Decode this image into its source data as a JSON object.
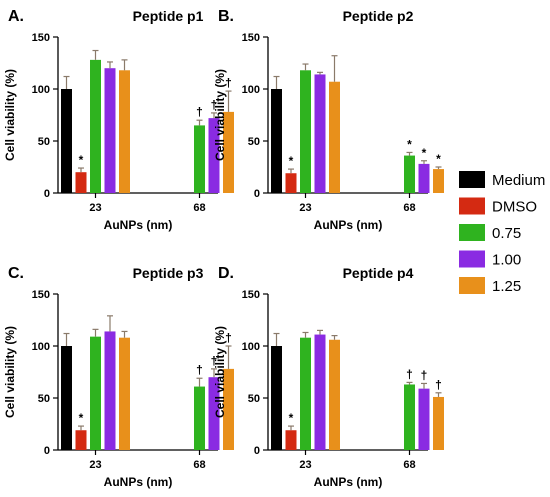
{
  "chart_data": [
    {
      "type": "bar",
      "panel_label": "A.",
      "title": "Peptide p1",
      "xlabel": "AuNPs (nm)",
      "ylabel": "Cell viability (%)",
      "ylim": [
        0,
        150
      ],
      "yticks": [
        0,
        50,
        100,
        150
      ],
      "categories": [
        "23",
        "68"
      ],
      "series": [
        {
          "name": "Medium",
          "values": [
            100,
            null
          ],
          "errors": [
            12,
            null
          ],
          "marks": [
            "",
            ""
          ]
        },
        {
          "name": "DMSO",
          "values": [
            20,
            null
          ],
          "errors": [
            4,
            null
          ],
          "marks": [
            "*",
            ""
          ]
        },
        {
          "name": "0.75",
          "values": [
            128,
            65
          ],
          "errors": [
            9,
            5
          ],
          "marks": [
            "",
            "†"
          ]
        },
        {
          "name": "1.00",
          "values": [
            120,
            72
          ],
          "errors": [
            6,
            5
          ],
          "marks": [
            "",
            "†"
          ]
        },
        {
          "name": "1.25",
          "values": [
            118,
            78
          ],
          "errors": [
            10,
            20
          ],
          "marks": [
            "",
            "†"
          ]
        }
      ]
    },
    {
      "type": "bar",
      "panel_label": "B.",
      "title": "Peptide p2",
      "xlabel": "AuNPs (nm)",
      "ylabel": "Cell viability (%)",
      "ylim": [
        0,
        150
      ],
      "yticks": [
        0,
        50,
        100,
        150
      ],
      "categories": [
        "23",
        "68"
      ],
      "series": [
        {
          "name": "Medium",
          "values": [
            100,
            null
          ],
          "errors": [
            12,
            null
          ],
          "marks": [
            "",
            ""
          ]
        },
        {
          "name": "DMSO",
          "values": [
            19,
            null
          ],
          "errors": [
            4,
            null
          ],
          "marks": [
            "*",
            ""
          ]
        },
        {
          "name": "0.75",
          "values": [
            118,
            36
          ],
          "errors": [
            6,
            3
          ],
          "marks": [
            "",
            "*"
          ]
        },
        {
          "name": "1.00",
          "values": [
            114,
            28
          ],
          "errors": [
            2,
            3
          ],
          "marks": [
            "",
            "*"
          ]
        },
        {
          "name": "1.25",
          "values": [
            107,
            23
          ],
          "errors": [
            25,
            2
          ],
          "marks": [
            "",
            "*"
          ]
        }
      ]
    },
    {
      "type": "bar",
      "panel_label": "C.",
      "title": "Peptide p3",
      "xlabel": "AuNPs (nm)",
      "ylabel": "Cell viability (%)",
      "ylim": [
        0,
        150
      ],
      "yticks": [
        0,
        50,
        100,
        150
      ],
      "categories": [
        "23",
        "68"
      ],
      "series": [
        {
          "name": "Medium",
          "values": [
            100,
            null
          ],
          "errors": [
            12,
            null
          ],
          "marks": [
            "",
            ""
          ]
        },
        {
          "name": "DMSO",
          "values": [
            19,
            null
          ],
          "errors": [
            4,
            null
          ],
          "marks": [
            "*",
            ""
          ]
        },
        {
          "name": "0.75",
          "values": [
            109,
            61
          ],
          "errors": [
            7,
            8
          ],
          "marks": [
            "",
            "†"
          ]
        },
        {
          "name": "1.00",
          "values": [
            114,
            70
          ],
          "errors": [
            15,
            8
          ],
          "marks": [
            "",
            "†"
          ]
        },
        {
          "name": "1.25",
          "values": [
            108,
            78
          ],
          "errors": [
            6,
            22
          ],
          "marks": [
            "",
            "†"
          ]
        }
      ]
    },
    {
      "type": "bar",
      "panel_label": "D.",
      "title": "Peptide p4",
      "xlabel": "AuNPs (nm)",
      "ylabel": "Cell viability (%)",
      "ylim": [
        0,
        150
      ],
      "yticks": [
        0,
        50,
        100,
        150
      ],
      "categories": [
        "23",
        "68"
      ],
      "series": [
        {
          "name": "Medium",
          "values": [
            100,
            null
          ],
          "errors": [
            12,
            null
          ],
          "marks": [
            "",
            ""
          ]
        },
        {
          "name": "DMSO",
          "values": [
            19,
            null
          ],
          "errors": [
            4,
            null
          ],
          "marks": [
            "*",
            ""
          ]
        },
        {
          "name": "0.75",
          "values": [
            108,
            63
          ],
          "errors": [
            5,
            2
          ],
          "marks": [
            "",
            "†"
          ]
        },
        {
          "name": "1.00",
          "values": [
            111,
            59
          ],
          "errors": [
            4,
            5
          ],
          "marks": [
            "",
            "†"
          ]
        },
        {
          "name": "1.25",
          "values": [
            106,
            51
          ],
          "errors": [
            4,
            4
          ],
          "marks": [
            "",
            "†"
          ]
        }
      ]
    }
  ],
  "legend": {
    "placement": "right",
    "items": [
      {
        "label": "Medium",
        "color": "#000000"
      },
      {
        "label": "DMSO",
        "color": "#d42a12"
      },
      {
        "label": "0.75",
        "color": "#2fb31f"
      },
      {
        "label": "1.00",
        "color": "#8a2be2"
      },
      {
        "label": "1.25",
        "color": "#e8901b"
      }
    ]
  },
  "colors": {
    "Medium": "#000000",
    "DMSO": "#d42a12",
    "0.75": "#2fb31f",
    "1.00": "#8a2be2",
    "1.25": "#e8901b",
    "error_bar": "#8a7a6a",
    "mark_dagger": "#000000",
    "mark_star_group": "#2e8b57"
  }
}
